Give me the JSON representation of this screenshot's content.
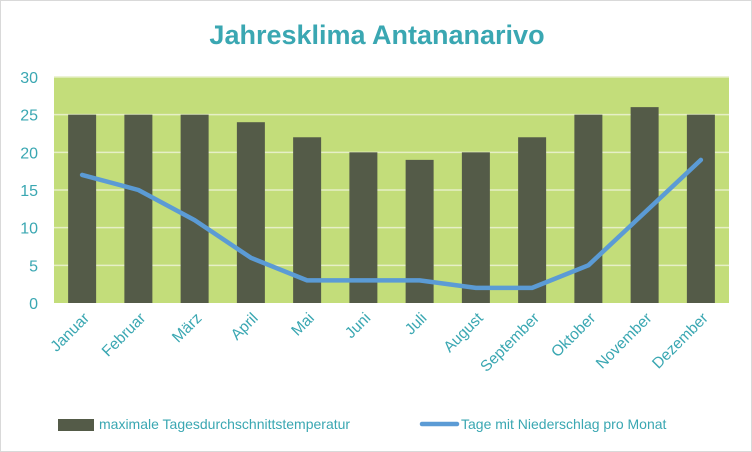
{
  "chart_data": {
    "type": "bar",
    "title": "Jahresklima Antananarivo",
    "categories": [
      "Januar",
      "Februar",
      "März",
      "April",
      "Mai",
      "Juni",
      "Juli",
      "August",
      "September",
      "Oktober",
      "November",
      "Dezember"
    ],
    "series": [
      {
        "name": "maximale Tagesdurchschnittstemperatur",
        "kind": "bar",
        "values": [
          25,
          25,
          25,
          24,
          22,
          20,
          19,
          20,
          22,
          25,
          26,
          25
        ]
      },
      {
        "name": "Tage mit Niederschlag pro Monat",
        "kind": "line",
        "values": [
          17,
          15,
          11,
          6,
          3,
          3,
          3,
          2,
          2,
          5,
          12,
          19
        ]
      }
    ],
    "ylim": [
      0,
      30
    ],
    "yticks": [
      0,
      5,
      10,
      15,
      20,
      25,
      30
    ],
    "grid": true,
    "legend_position": "bottom",
    "colors": {
      "title": "#3aa7b2",
      "axis_text": "#3aa7b2",
      "plot_background": "#c3dd7a",
      "bar": "#545b48",
      "line": "#5b9bd5",
      "gridline": "#e6efc6"
    }
  }
}
